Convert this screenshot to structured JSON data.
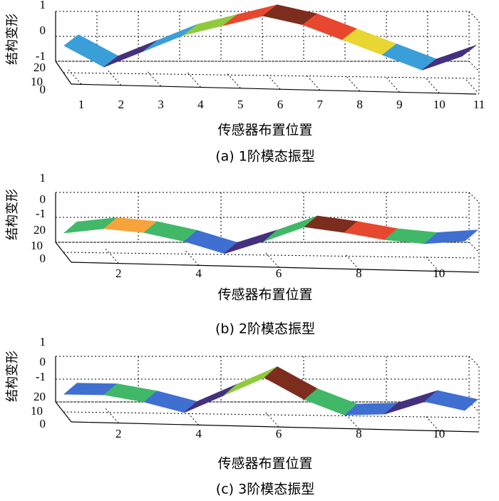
{
  "chart_data": [
    {
      "type": "surface",
      "caption": "(a) 1阶模态振型",
      "xlabel": "传感器布置位置",
      "ylabel": "结构变形",
      "x_ticks": [
        "1",
        "2",
        "3",
        "4",
        "5",
        "6",
        "7",
        "8",
        "9",
        "10",
        "11"
      ],
      "z_ticks": [
        "1",
        "0",
        "-1"
      ],
      "depth_ticks": [
        "20",
        "10",
        "0"
      ],
      "x": [
        1,
        2,
        3,
        4,
        5,
        6,
        7,
        8,
        9,
        10,
        11
      ],
      "values": [
        -0.45,
        -0.95,
        -0.55,
        -0.15,
        0.1,
        0.35,
        0.15,
        -0.2,
        -0.55,
        -0.9,
        -0.55
      ],
      "colors": [
        "#3a9fd8",
        "#45307f",
        "#3a9fd8",
        "#8fca3c",
        "#e8472f",
        "#7c2d1e",
        "#e8472f",
        "#e8d633",
        "#3a9fd8",
        "#45307f"
      ],
      "zlim": [
        -1,
        1
      ]
    },
    {
      "type": "surface",
      "caption": "(b) 2阶模态振型",
      "xlabel": "传感器布置位置",
      "ylabel": "结构变形",
      "x_ticks": [
        "2",
        "4",
        "6",
        "8",
        "10"
      ],
      "z_ticks": [
        "1",
        "0",
        "-1"
      ],
      "depth_ticks": [
        "20",
        "10",
        "0"
      ],
      "x": [
        1,
        2,
        3,
        4,
        5,
        6,
        7,
        8,
        9,
        10,
        11
      ],
      "values": [
        -1.0,
        -0.85,
        -0.95,
        -1.2,
        -1.55,
        -1.15,
        -0.7,
        -0.85,
        -1.05,
        -1.15,
        -1.05
      ],
      "colors": [
        "#41b868",
        "#f5a33a",
        "#41b868",
        "#3f6fd0",
        "#45307f",
        "#41b868",
        "#7c2d1e",
        "#e8472f",
        "#41b868",
        "#3f6fd0"
      ],
      "zlim": [
        -1,
        1
      ]
    },
    {
      "type": "surface",
      "caption": "(c) 3阶模态振型",
      "xlabel": "传感器布置位置",
      "ylabel": "结构变形",
      "x_ticks": [
        "2",
        "4",
        "6",
        "8",
        "10"
      ],
      "z_ticks": [
        "1",
        "0",
        "-1"
      ],
      "depth_ticks": [
        "20",
        "10",
        "0"
      ],
      "x": [
        1,
        2,
        3,
        4,
        5,
        6,
        7,
        8,
        9,
        10,
        11
      ],
      "values": [
        -1.05,
        -1.05,
        -1.25,
        -1.55,
        -1.0,
        -0.45,
        -1.1,
        -1.55,
        -1.5,
        -1.1,
        -1.35
      ],
      "colors": [
        "#3f6fd0",
        "#41b868",
        "#3f6fd0",
        "#45307f",
        "#8fca3c",
        "#7c2d1e",
        "#41b868",
        "#3f6fd0",
        "#45307f",
        "#3f6fd0"
      ],
      "zlim": [
        -1,
        1
      ]
    }
  ]
}
